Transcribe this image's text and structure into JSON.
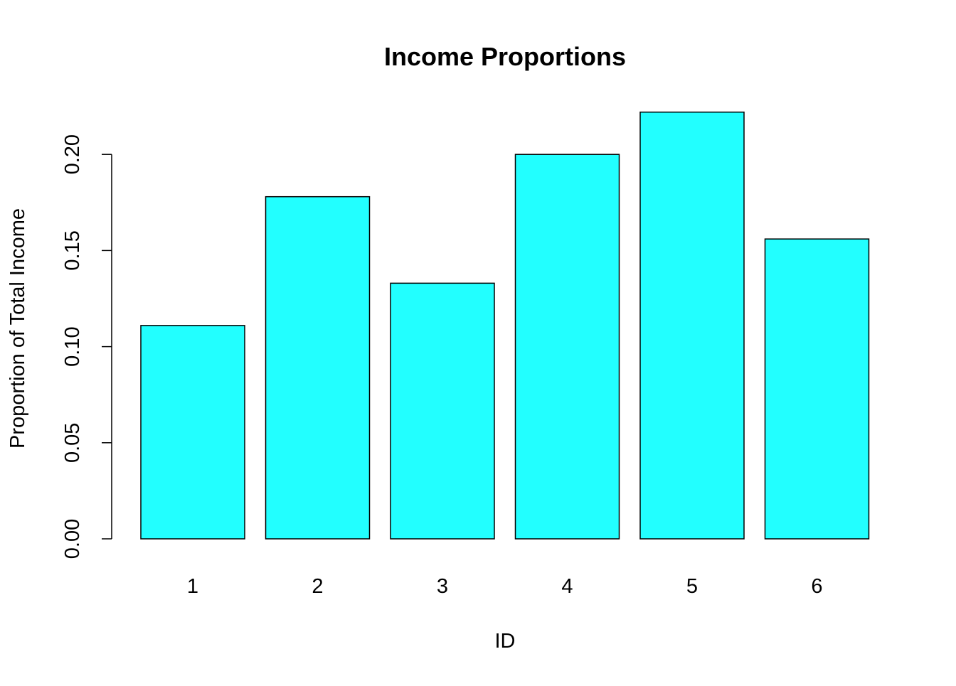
{
  "chart_data": {
    "type": "bar",
    "title": "Income Proportions",
    "xlabel": "ID",
    "ylabel": "Proportion of Total Income",
    "categories": [
      "1",
      "2",
      "3",
      "4",
      "5",
      "6"
    ],
    "values": [
      0.111,
      0.178,
      0.133,
      0.2,
      0.222,
      0.156
    ],
    "ylim": [
      0,
      0.22
    ],
    "yticks": [
      0.0,
      0.05,
      0.1,
      0.15,
      0.2
    ],
    "ytick_labels": [
      "0.00",
      "0.05",
      "0.10",
      "0.15",
      "0.20"
    ],
    "grid": false,
    "legend": "none",
    "bar_color": "#22ffff",
    "bar_edge_color": "#000000"
  }
}
